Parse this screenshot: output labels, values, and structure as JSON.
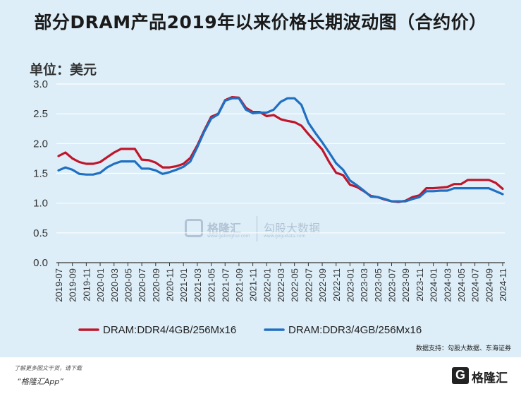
{
  "title": "部分DRAM产品2019年以来价格长期波动图（合约价）",
  "unit_label": "单位：美元",
  "source_note": "数据支持：勾股大数据、东海证券",
  "footer": {
    "note_line1": "了解更多图文干货，请下载",
    "note_line2": "“格隆汇App”",
    "logo_text": "格隆汇"
  },
  "watermark": {
    "left": "格隆汇",
    "left_sub": "www.gelonghui.com",
    "right": "勾股大数据",
    "right_sub": "www.gogudata.com"
  },
  "colors": {
    "panel_bg": "#ddeef8",
    "ddr4": "#c0152a",
    "ddr3": "#1f6fc2"
  },
  "chart_data": {
    "type": "line",
    "ylim": [
      0,
      3.0
    ],
    "yticks": [
      "0.0",
      "0.5",
      "1.0",
      "1.5",
      "2.0",
      "2.5",
      "3.0"
    ],
    "xticks": [
      "2019-07",
      "2019-09",
      "2019-11",
      "2020-01",
      "2020-03",
      "2020-05",
      "2020-07",
      "2020-09",
      "2020-11",
      "2021-01",
      "2021-03",
      "2021-05",
      "2021-07",
      "2021-09",
      "2021-11",
      "2022-01",
      "2022-03",
      "2022-05",
      "2022-07",
      "2022-09",
      "2022-11",
      "2023-01",
      "2023-03",
      "2023-05",
      "2023-07",
      "2023-09",
      "2023-11",
      "2024-01",
      "2024-03",
      "2024-05",
      "2024-07",
      "2024-09",
      "2024-11"
    ],
    "x": [
      "2019-07",
      "2019-08",
      "2019-09",
      "2019-10",
      "2019-11",
      "2019-12",
      "2020-01",
      "2020-02",
      "2020-03",
      "2020-04",
      "2020-05",
      "2020-06",
      "2020-07",
      "2020-08",
      "2020-09",
      "2020-10",
      "2020-11",
      "2020-12",
      "2021-01",
      "2021-02",
      "2021-03",
      "2021-04",
      "2021-05",
      "2021-06",
      "2021-07",
      "2021-08",
      "2021-09",
      "2021-10",
      "2021-11",
      "2021-12",
      "2022-01",
      "2022-02",
      "2022-03",
      "2022-04",
      "2022-05",
      "2022-06",
      "2022-07",
      "2022-08",
      "2022-09",
      "2022-10",
      "2022-11",
      "2022-12",
      "2023-01",
      "2023-02",
      "2023-03",
      "2023-04",
      "2023-05",
      "2023-06",
      "2023-07",
      "2023-08",
      "2023-09",
      "2023-10",
      "2023-11",
      "2023-12",
      "2024-01",
      "2024-02",
      "2024-03",
      "2024-04",
      "2024-05",
      "2024-06",
      "2024-07",
      "2024-08",
      "2024-09",
      "2024-10",
      "2024-11"
    ],
    "series": [
      {
        "name": "DRAM:DDR4/4GB/256Mx16",
        "values": [
          1.79,
          1.85,
          1.75,
          1.69,
          1.66,
          1.66,
          1.69,
          1.77,
          1.85,
          1.91,
          1.91,
          1.91,
          1.73,
          1.72,
          1.68,
          1.6,
          1.6,
          1.62,
          1.66,
          1.76,
          1.97,
          2.22,
          2.45,
          2.5,
          2.73,
          2.78,
          2.77,
          2.6,
          2.53,
          2.53,
          2.46,
          2.48,
          2.41,
          2.38,
          2.36,
          2.3,
          2.16,
          2.03,
          1.9,
          1.69,
          1.51,
          1.47,
          1.31,
          1.27,
          1.2,
          1.12,
          1.1,
          1.06,
          1.03,
          1.02,
          1.04,
          1.1,
          1.13,
          1.25,
          1.25,
          1.26,
          1.27,
          1.32,
          1.32,
          1.39,
          1.39,
          1.39,
          1.39,
          1.34,
          1.24
        ]
      },
      {
        "name": "DRAM:DDR3/4GB/256Mx16",
        "values": [
          1.55,
          1.6,
          1.56,
          1.49,
          1.48,
          1.48,
          1.51,
          1.6,
          1.66,
          1.7,
          1.7,
          1.7,
          1.58,
          1.58,
          1.55,
          1.49,
          1.52,
          1.56,
          1.61,
          1.7,
          1.94,
          2.2,
          2.42,
          2.49,
          2.72,
          2.76,
          2.76,
          2.57,
          2.51,
          2.52,
          2.52,
          2.57,
          2.7,
          2.76,
          2.76,
          2.65,
          2.35,
          2.18,
          2.02,
          1.85,
          1.67,
          1.56,
          1.38,
          1.3,
          1.21,
          1.11,
          1.1,
          1.07,
          1.03,
          1.03,
          1.03,
          1.07,
          1.1,
          1.2,
          1.2,
          1.21,
          1.21,
          1.25,
          1.25,
          1.25,
          1.25,
          1.25,
          1.25,
          1.2,
          1.15
        ]
      }
    ]
  }
}
